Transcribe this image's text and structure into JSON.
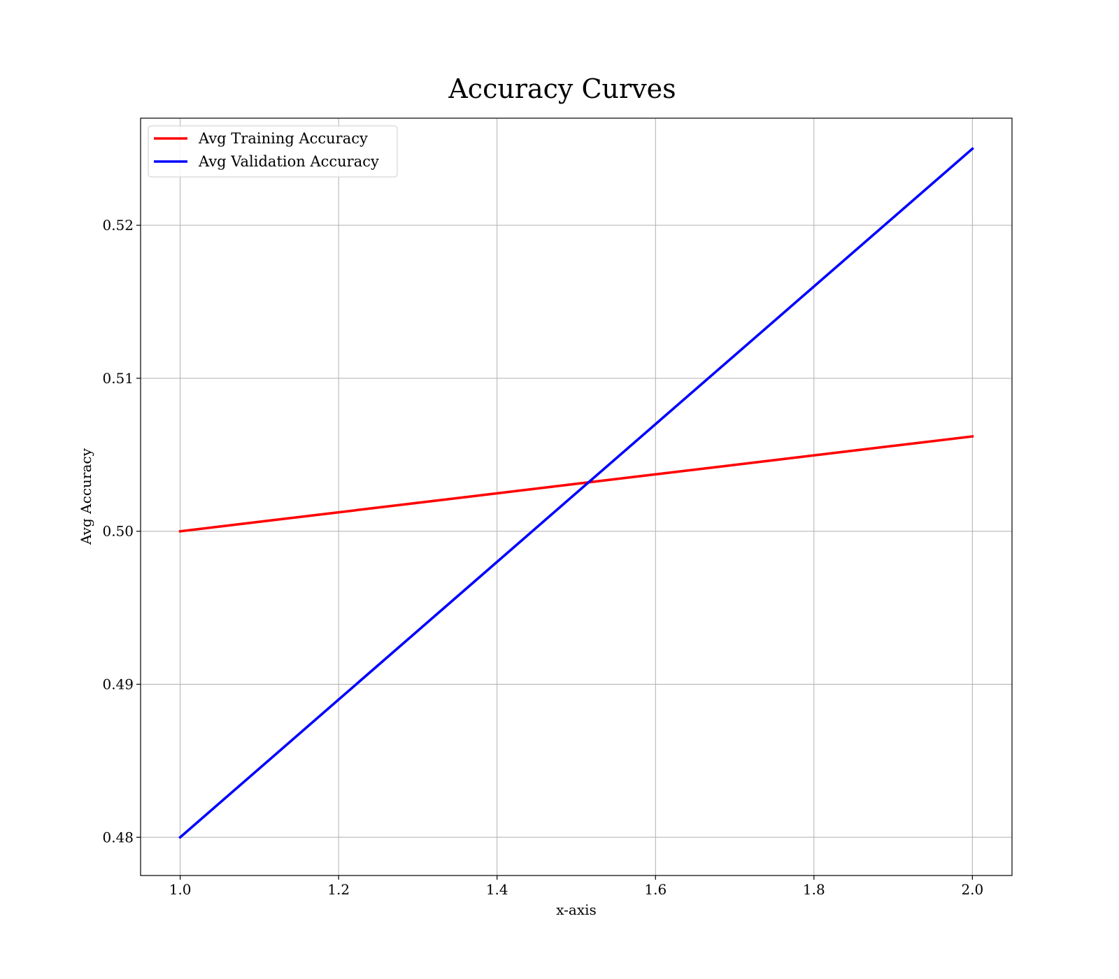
{
  "chart_data": {
    "type": "line",
    "title": "Accuracy Curves",
    "xlabel": "x-axis",
    "ylabel": "Avg Accuracy",
    "xlim": [
      0.95,
      2.05
    ],
    "ylim": [
      0.4775,
      0.527
    ],
    "xticks": [
      1.0,
      1.2,
      1.4,
      1.6,
      1.8,
      2.0
    ],
    "xtick_labels": [
      "1.0",
      "1.2",
      "1.4",
      "1.6",
      "1.8",
      "2.0"
    ],
    "yticks": [
      0.48,
      0.49,
      0.5,
      0.51,
      0.52
    ],
    "ytick_labels": [
      "0.48",
      "0.49",
      "0.50",
      "0.51",
      "0.52"
    ],
    "grid": true,
    "legend_position": "top-left",
    "series": [
      {
        "name": "Avg Training Accuracy",
        "color": "#ff0000",
        "x": [
          1.0,
          2.0
        ],
        "y": [
          0.5,
          0.5062
        ]
      },
      {
        "name": "Avg Validation Accuracy",
        "color": "#0000ff",
        "x": [
          1.0,
          2.0
        ],
        "y": [
          0.48,
          0.525
        ]
      }
    ]
  }
}
